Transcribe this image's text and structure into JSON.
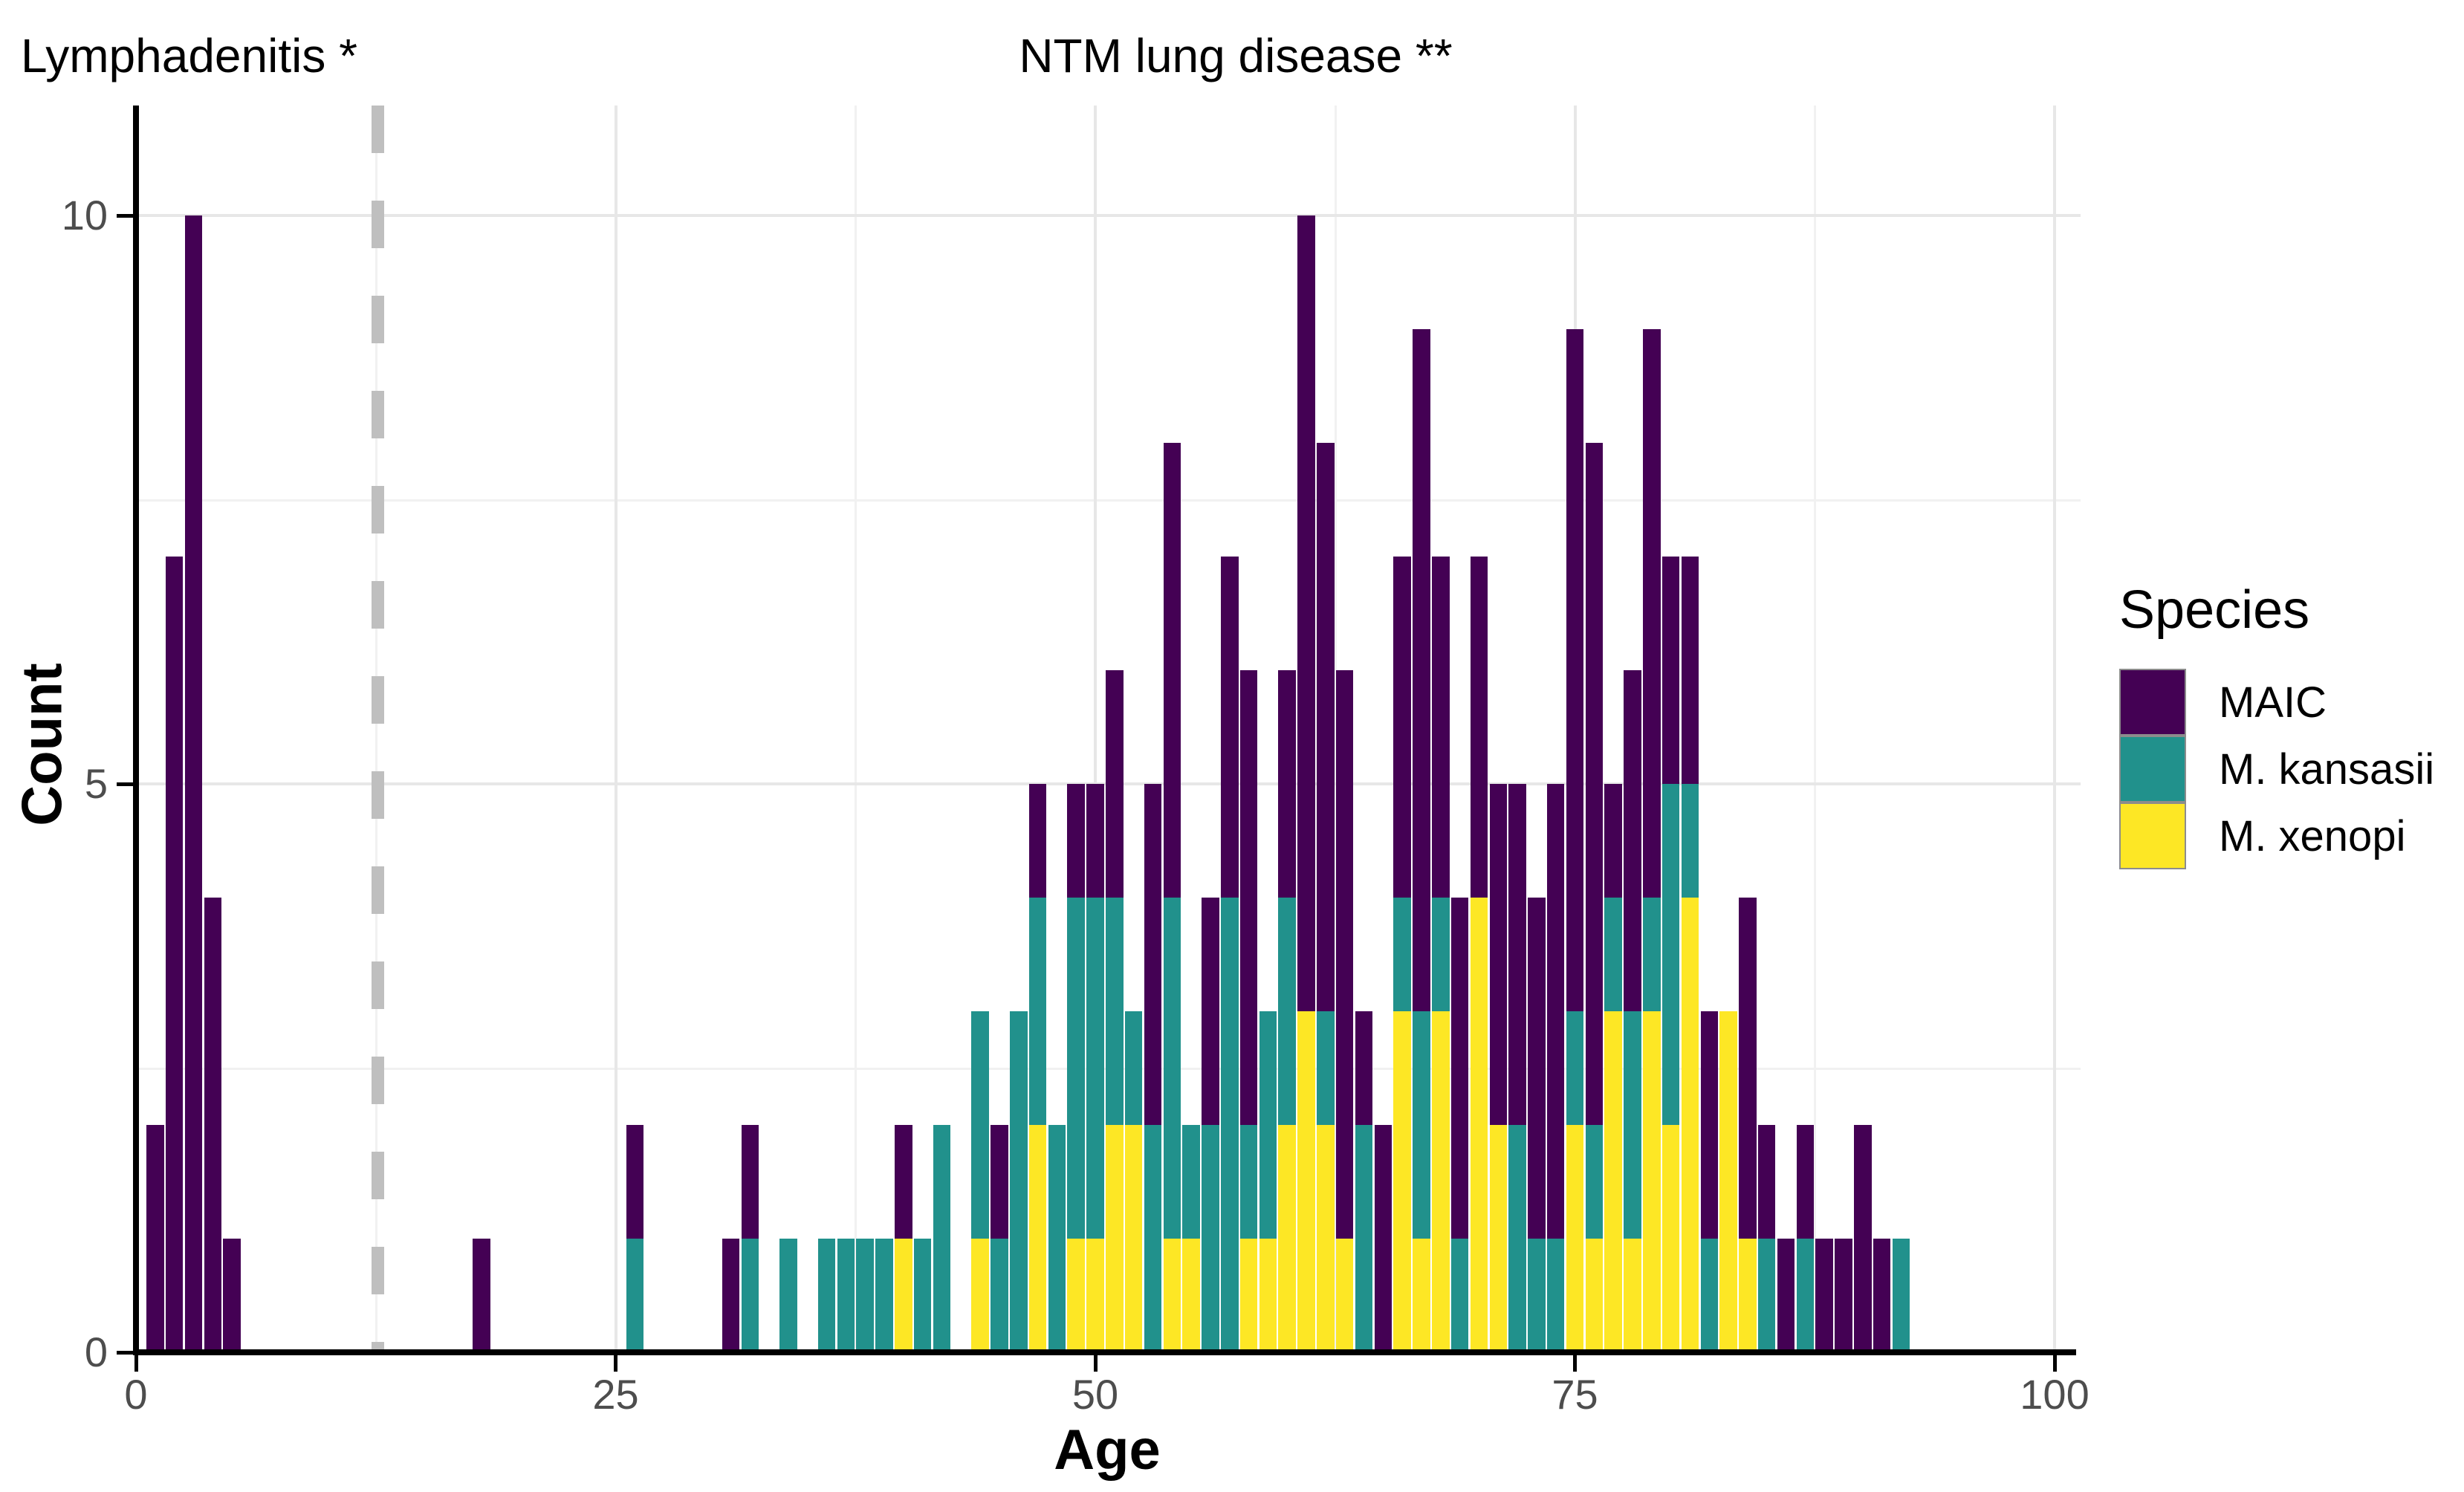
{
  "annotations": {
    "left_title": "Lymphadenitis *",
    "center_title": "NTM lung disease **"
  },
  "axes": {
    "x_label": "Age",
    "y_label": "Count",
    "x_tick_labels": [
      "0",
      "25",
      "50",
      "75",
      "100"
    ],
    "x_tick_values": [
      0,
      25,
      50,
      75,
      100
    ],
    "x_minor_values": [
      12.5,
      37.5,
      62.5,
      87.5
    ],
    "y_tick_labels": [
      "0",
      "5",
      "10"
    ],
    "y_tick_values": [
      0,
      5,
      10
    ],
    "y_minor_values": [
      2.5,
      7.5
    ]
  },
  "legend": {
    "title": "Species",
    "entries": [
      {
        "label": "MAIC",
        "color": "#440154"
      },
      {
        "label": "M. kansasii",
        "color": "#21918C"
      },
      {
        "label": "M. xenopi",
        "color": "#FDE725"
      }
    ]
  },
  "colors": {
    "maic": "#440154",
    "kansasii": "#21918C",
    "xenopi": "#FDE725",
    "bar_border": "#8c8c8c",
    "dashed_line": "#BFBFBF",
    "grid_major": "#E7E7E7",
    "grid_minor": "#F1F1F1",
    "tick_label": "#4D4D4D",
    "axis_line": "#000000"
  },
  "chart_data": {
    "type": "bar",
    "subtype": "stacked_histogram",
    "title_left": "Lymphadenitis *",
    "title_center": "NTM lung disease **",
    "xlabel": "Age",
    "ylabel": "Count",
    "xlim": [
      0,
      100
    ],
    "ylim": [
      0,
      11
    ],
    "x_ticks": [
      0,
      25,
      50,
      75,
      100
    ],
    "y_ticks": [
      0,
      5,
      10
    ],
    "grid": "major_and_minor",
    "legend_position": "right",
    "legend_title": "Species",
    "bin_width": 1,
    "dashed_vline_x": 12.6,
    "stack_order_bottom_to_top": [
      "M. xenopi",
      "M. kansasii",
      "MAIC"
    ],
    "series_colors": {
      "MAIC": "#440154",
      "M. kansasii": "#21918C",
      "M. xenopi": "#FDE725"
    },
    "bars": [
      {
        "age": 1,
        "xenopi": 0,
        "kansasii": 0,
        "maic": 2
      },
      {
        "age": 2,
        "xenopi": 0,
        "kansasii": 0,
        "maic": 7
      },
      {
        "age": 3,
        "xenopi": 0,
        "kansasii": 0,
        "maic": 10
      },
      {
        "age": 4,
        "xenopi": 0,
        "kansasii": 0,
        "maic": 4
      },
      {
        "age": 5,
        "xenopi": 0,
        "kansasii": 0,
        "maic": 1
      },
      {
        "age": 18,
        "xenopi": 0,
        "kansasii": 0,
        "maic": 1
      },
      {
        "age": 26,
        "xenopi": 0,
        "kansasii": 1,
        "maic": 1
      },
      {
        "age": 31,
        "xenopi": 0,
        "kansasii": 0,
        "maic": 1
      },
      {
        "age": 32,
        "xenopi": 0,
        "kansasii": 1,
        "maic": 1
      },
      {
        "age": 34,
        "xenopi": 0,
        "kansasii": 1,
        "maic": 0
      },
      {
        "age": 36,
        "xenopi": 0,
        "kansasii": 1,
        "maic": 0
      },
      {
        "age": 37,
        "xenopi": 0,
        "kansasii": 1,
        "maic": 0
      },
      {
        "age": 38,
        "xenopi": 0,
        "kansasii": 1,
        "maic": 0
      },
      {
        "age": 39,
        "xenopi": 0,
        "kansasii": 1,
        "maic": 0
      },
      {
        "age": 40,
        "xenopi": 1,
        "kansasii": 0,
        "maic": 1
      },
      {
        "age": 41,
        "xenopi": 0,
        "kansasii": 1,
        "maic": 0
      },
      {
        "age": 42,
        "xenopi": 0,
        "kansasii": 2,
        "maic": 0
      },
      {
        "age": 44,
        "xenopi": 1,
        "kansasii": 2,
        "maic": 0
      },
      {
        "age": 45,
        "xenopi": 0,
        "kansasii": 1,
        "maic": 1
      },
      {
        "age": 46,
        "xenopi": 0,
        "kansasii": 3,
        "maic": 0
      },
      {
        "age": 47,
        "xenopi": 2,
        "kansasii": 2,
        "maic": 1
      },
      {
        "age": 48,
        "xenopi": 0,
        "kansasii": 2,
        "maic": 0
      },
      {
        "age": 49,
        "xenopi": 1,
        "kansasii": 3,
        "maic": 1
      },
      {
        "age": 50,
        "xenopi": 1,
        "kansasii": 3,
        "maic": 1
      },
      {
        "age": 51,
        "xenopi": 2,
        "kansasii": 2,
        "maic": 2
      },
      {
        "age": 52,
        "xenopi": 2,
        "kansasii": 1,
        "maic": 0
      },
      {
        "age": 53,
        "xenopi": 0,
        "kansasii": 2,
        "maic": 3
      },
      {
        "age": 54,
        "xenopi": 1,
        "kansasii": 3,
        "maic": 4
      },
      {
        "age": 55,
        "xenopi": 1,
        "kansasii": 1,
        "maic": 0
      },
      {
        "age": 56,
        "xenopi": 0,
        "kansasii": 2,
        "maic": 2
      },
      {
        "age": 57,
        "xenopi": 0,
        "kansasii": 4,
        "maic": 3
      },
      {
        "age": 58,
        "xenopi": 1,
        "kansasii": 1,
        "maic": 4
      },
      {
        "age": 59,
        "xenopi": 1,
        "kansasii": 2,
        "maic": 0
      },
      {
        "age": 60,
        "xenopi": 2,
        "kansasii": 2,
        "maic": 2
      },
      {
        "age": 61,
        "xenopi": 3,
        "kansasii": 0,
        "maic": 7
      },
      {
        "age": 62,
        "xenopi": 2,
        "kansasii": 1,
        "maic": 5
      },
      {
        "age": 63,
        "xenopi": 1,
        "kansasii": 0,
        "maic": 5
      },
      {
        "age": 64,
        "xenopi": 0,
        "kansasii": 2,
        "maic": 1
      },
      {
        "age": 65,
        "xenopi": 0,
        "kansasii": 0,
        "maic": 2
      },
      {
        "age": 66,
        "xenopi": 3,
        "kansasii": 1,
        "maic": 3
      },
      {
        "age": 67,
        "xenopi": 1,
        "kansasii": 2,
        "maic": 6
      },
      {
        "age": 68,
        "xenopi": 3,
        "kansasii": 1,
        "maic": 3
      },
      {
        "age": 69,
        "xenopi": 0,
        "kansasii": 1,
        "maic": 3
      },
      {
        "age": 70,
        "xenopi": 4,
        "kansasii": 0,
        "maic": 3
      },
      {
        "age": 71,
        "xenopi": 2,
        "kansasii": 0,
        "maic": 3
      },
      {
        "age": 72,
        "xenopi": 0,
        "kansasii": 2,
        "maic": 3
      },
      {
        "age": 73,
        "xenopi": 0,
        "kansasii": 1,
        "maic": 3
      },
      {
        "age": 74,
        "xenopi": 0,
        "kansasii": 1,
        "maic": 4
      },
      {
        "age": 75,
        "xenopi": 2,
        "kansasii": 1,
        "maic": 6
      },
      {
        "age": 76,
        "xenopi": 1,
        "kansasii": 1,
        "maic": 6
      },
      {
        "age": 77,
        "xenopi": 3,
        "kansasii": 1,
        "maic": 1
      },
      {
        "age": 78,
        "xenopi": 1,
        "kansasii": 2,
        "maic": 3
      },
      {
        "age": 79,
        "xenopi": 3,
        "kansasii": 1,
        "maic": 5
      },
      {
        "age": 80,
        "xenopi": 2,
        "kansasii": 3,
        "maic": 2
      },
      {
        "age": 81,
        "xenopi": 4,
        "kansasii": 1,
        "maic": 2
      },
      {
        "age": 82,
        "xenopi": 0,
        "kansasii": 1,
        "maic": 2
      },
      {
        "age": 83,
        "xenopi": 3,
        "kansasii": 0,
        "maic": 0
      },
      {
        "age": 84,
        "xenopi": 1,
        "kansasii": 0,
        "maic": 3
      },
      {
        "age": 85,
        "xenopi": 0,
        "kansasii": 1,
        "maic": 1
      },
      {
        "age": 86,
        "xenopi": 0,
        "kansasii": 0,
        "maic": 1
      },
      {
        "age": 87,
        "xenopi": 0,
        "kansasii": 1,
        "maic": 1
      },
      {
        "age": 88,
        "xenopi": 0,
        "kansasii": 0,
        "maic": 1
      },
      {
        "age": 89,
        "xenopi": 0,
        "kansasii": 0,
        "maic": 1
      },
      {
        "age": 90,
        "xenopi": 0,
        "kansasii": 0,
        "maic": 2
      },
      {
        "age": 91,
        "xenopi": 0,
        "kansasii": 0,
        "maic": 1
      },
      {
        "age": 92,
        "xenopi": 0,
        "kansasii": 1,
        "maic": 0
      }
    ]
  }
}
